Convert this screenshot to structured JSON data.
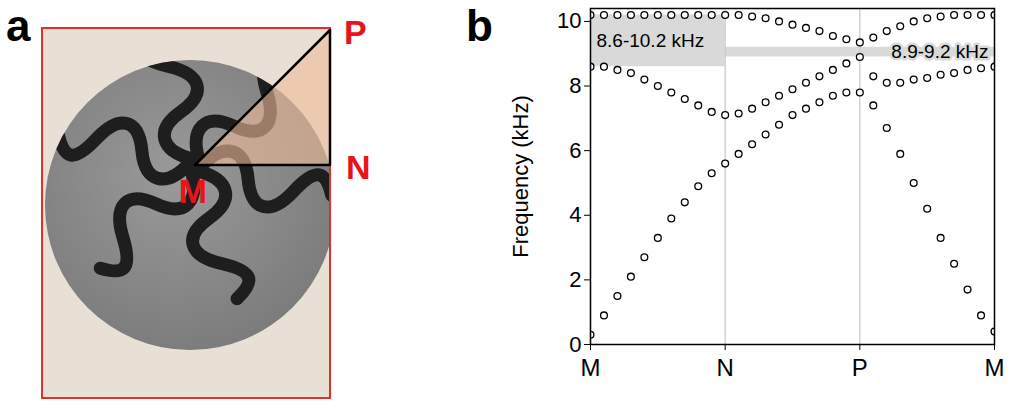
{
  "panel_a": {
    "label": "a",
    "vertices": [
      "M",
      "N",
      "P"
    ]
  },
  "chart_data": {
    "panel_label": "b",
    "type": "scatter",
    "marker": "circle",
    "color": "#000000",
    "y_label": "Frequency (kHz)",
    "x": [
      0,
      0.1,
      0.2,
      0.3,
      0.4,
      0.5,
      0.6,
      0.7,
      0.8,
      0.9,
      1,
      1.1,
      1.2,
      1.3,
      1.4,
      1.5,
      1.6,
      1.7,
      1.8,
      1.9,
      2,
      2.1,
      2.2,
      2.3,
      2.4,
      2.5,
      2.6,
      2.7,
      2.8,
      2.9,
      3
    ],
    "series": [
      {
        "values": [
          0.3,
          0.9,
          1.5,
          2.1,
          2.7,
          3.3,
          3.9,
          4.4,
          4.9,
          5.3,
          5.6,
          5.9,
          6.2,
          6.5,
          6.8,
          7.1,
          7.3,
          7.5,
          7.7,
          7.8,
          7.8,
          7.4,
          6.7,
          5.9,
          5.0,
          4.2,
          3.3,
          2.5,
          1.7,
          0.9,
          0.4
        ]
      },
      {
        "values": [
          8.6,
          8.6,
          8.5,
          8.4,
          8.2,
          8.0,
          7.8,
          7.6,
          7.4,
          7.2,
          7.1,
          7.15,
          7.3,
          7.5,
          7.7,
          7.9,
          8.1,
          8.3,
          8.5,
          8.7,
          8.9,
          8.3,
          8.1,
          8.1,
          8.2,
          8.25,
          8.35,
          8.4,
          8.5,
          8.55,
          8.6
        ]
      },
      {
        "values": [
          10.2,
          10.2,
          10.2,
          10.2,
          10.2,
          10.2,
          10.2,
          10.2,
          10.2,
          10.2,
          10.2,
          10.2,
          10.15,
          10.1,
          10.0,
          9.9,
          9.8,
          9.7,
          9.55,
          9.45,
          9.35,
          9.5,
          9.7,
          9.85,
          10.0,
          10.1,
          10.15,
          10.2,
          10.2,
          10.2,
          10.2
        ]
      }
    ],
    "bands": [
      {
        "x1": 0,
        "x2": 1,
        "y1": 8.6,
        "y2": 10.2,
        "label": "8.6-10.2 kHz"
      },
      {
        "x1": 1,
        "x2": 3,
        "y1": 8.9,
        "y2": 9.2,
        "label": "8.9-9.2 kHz"
      }
    ],
    "xlim": [
      0,
      3
    ],
    "xticks": [
      {
        "value": 0,
        "label": "M"
      },
      {
        "value": 1,
        "label": "N"
      },
      {
        "value": 2,
        "label": "P"
      },
      {
        "value": 3,
        "label": "M"
      }
    ],
    "ylim": [
      0,
      10.4
    ],
    "yticks": [
      0,
      2,
      4,
      6,
      8,
      10
    ],
    "grid": true
  }
}
